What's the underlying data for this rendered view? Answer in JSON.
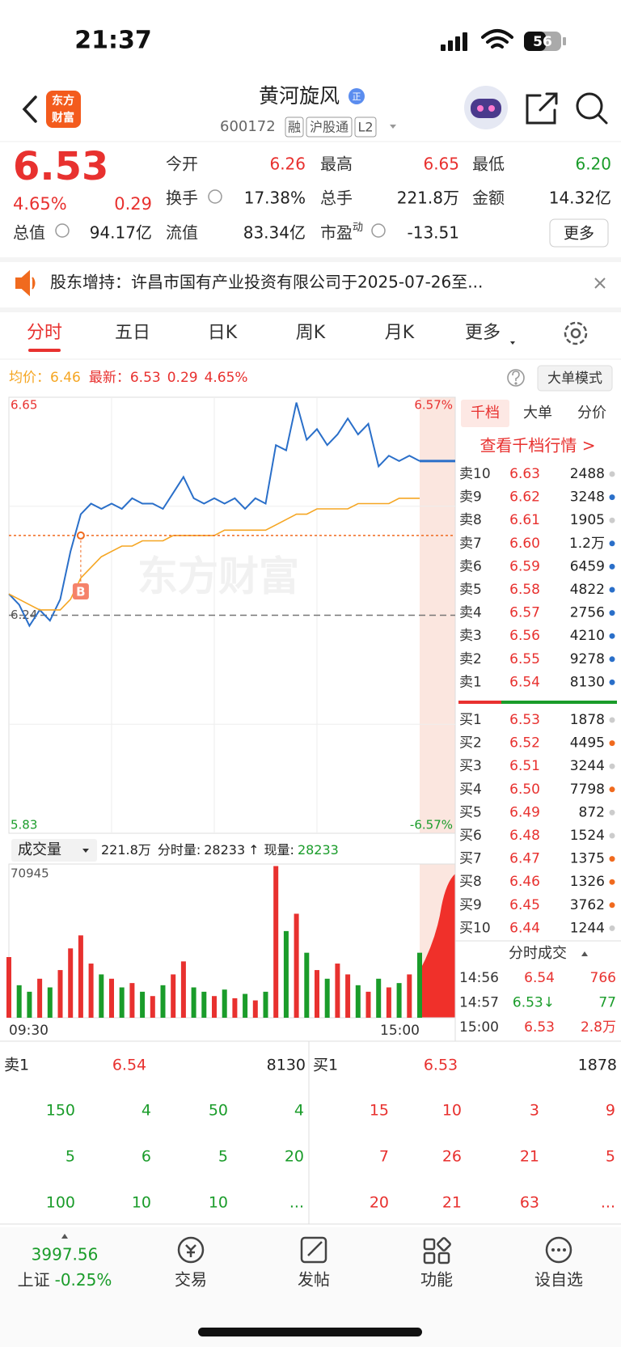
{
  "status_bar": {
    "time": "21:37",
    "battery": "56"
  },
  "header": {
    "logo": [
      "东方",
      "财富"
    ],
    "title": "黄河旋风",
    "badge": "正",
    "code": "600172",
    "tags": [
      "融",
      "沪股通",
      "L2"
    ]
  },
  "quote": {
    "price": "6.53",
    "change_pct": "4.65%",
    "change": "0.29",
    "fields": [
      {
        "label": "今开",
        "value": "6.26",
        "color": "#e8312f"
      },
      {
        "label": "最高",
        "value": "6.65",
        "color": "#e8312f"
      },
      {
        "label": "最低",
        "value": "6.20",
        "color": "#1a9c2a"
      },
      {
        "label": "换手",
        "value": "17.38%"
      },
      {
        "label": "总手",
        "value": "221.8万"
      },
      {
        "label": "金额",
        "value": "14.32亿"
      },
      {
        "label": "总值",
        "value": "94.17亿"
      },
      {
        "label": "流值",
        "value": "83.34亿"
      },
      {
        "label": "市盈",
        "sup": "动",
        "value": "-13.51"
      }
    ],
    "more": "更多"
  },
  "notice": "股东增持：许昌市国有产业投资有限公司于2025-07-26至...",
  "tabs": [
    "分时",
    "五日",
    "日K",
    "周K",
    "月K",
    "更多"
  ],
  "chart_data": {
    "type": "line",
    "avg_label": "均价：",
    "avg_value": "6.46",
    "latest_label": "最新：",
    "latest_value": "6.53",
    "latest_change": "0.29",
    "latest_pct": "4.65%",
    "mode_button": "大单模式",
    "watermark": "东方财富",
    "ylim": [
      5.83,
      6.65
    ],
    "pct_labels": [
      "6.57%",
      "-6.57%"
    ],
    "prev_close": 6.24,
    "x_labels": [
      "09:30",
      "15:00"
    ],
    "buy_marker": {
      "label": "B",
      "price": 6.39
    },
    "series": [
      {
        "color": "#2a6fc9",
        "values": [
          6.28,
          6.26,
          6.22,
          6.25,
          6.23,
          6.27,
          6.36,
          6.43,
          6.45,
          6.44,
          6.45,
          6.44,
          6.46,
          6.45,
          6.45,
          6.44,
          6.47,
          6.5,
          6.46,
          6.45,
          6.46,
          6.45,
          6.46,
          6.44,
          6.46,
          6.45,
          6.56,
          6.55,
          6.64,
          6.57,
          6.59,
          6.56,
          6.58,
          6.61,
          6.58,
          6.6,
          6.52,
          6.54,
          6.53,
          6.54,
          6.53
        ]
      },
      {
        "color": "#f5a623",
        "values": [
          6.28,
          6.27,
          6.26,
          6.25,
          6.25,
          6.25,
          6.27,
          6.31,
          6.33,
          6.35,
          6.36,
          6.37,
          6.37,
          6.38,
          6.38,
          6.38,
          6.39,
          6.39,
          6.39,
          6.39,
          6.39,
          6.4,
          6.4,
          6.4,
          6.4,
          6.4,
          6.41,
          6.42,
          6.43,
          6.43,
          6.44,
          6.44,
          6.44,
          6.44,
          6.45,
          6.45,
          6.45,
          6.45,
          6.46,
          6.46,
          6.46
        ]
      }
    ],
    "volume": {
      "selector": "成交量",
      "total": "221.8万",
      "minute_label": "分时量:",
      "minute_value": "28233",
      "arrow": "↑",
      "current_label": "现量:",
      "current_value": "28233",
      "ylim": [
        0,
        70945
      ],
      "values": [
        28000,
        15000,
        12000,
        18000,
        14000,
        22000,
        32000,
        38000,
        25000,
        20000,
        18000,
        14000,
        16000,
        12000,
        10000,
        15000,
        20000,
        26000,
        14000,
        12000,
        10000,
        13000,
        9000,
        11000,
        8000,
        12000,
        70000,
        40000,
        48000,
        30000,
        22000,
        18000,
        25000,
        20000,
        15000,
        12000,
        18000,
        14000,
        16000,
        20000,
        30000
      ]
    }
  },
  "order_book": {
    "tabs": [
      "千档",
      "大单",
      "分价"
    ],
    "link": "查看千档行情 >",
    "asks": [
      {
        "label": "卖10",
        "price": "6.63",
        "volume": "2488",
        "dot": "#cccccc"
      },
      {
        "label": "卖9",
        "price": "6.62",
        "volume": "3248",
        "dot": "#2a6fc9"
      },
      {
        "label": "卖8",
        "price": "6.61",
        "volume": "1905",
        "dot": "#cccccc"
      },
      {
        "label": "卖7",
        "price": "6.60",
        "volume": "1.2万",
        "dot": "#2a6fc9"
      },
      {
        "label": "卖6",
        "price": "6.59",
        "volume": "6459",
        "dot": "#2a6fc9"
      },
      {
        "label": "卖5",
        "price": "6.58",
        "volume": "4822",
        "dot": "#2a6fc9"
      },
      {
        "label": "卖4",
        "price": "6.57",
        "volume": "2756",
        "dot": "#2a6fc9"
      },
      {
        "label": "卖3",
        "price": "6.56",
        "volume": "4210",
        "dot": "#2a6fc9"
      },
      {
        "label": "卖2",
        "price": "6.55",
        "volume": "9278",
        "dot": "#2a6fc9"
      },
      {
        "label": "卖1",
        "price": "6.54",
        "volume": "8130",
        "dot": "#2a6fc9"
      }
    ],
    "bids": [
      {
        "label": "买1",
        "price": "6.53",
        "volume": "1878",
        "dot": "#cccccc"
      },
      {
        "label": "买2",
        "price": "6.52",
        "volume": "4495",
        "dot": "#f06a1e"
      },
      {
        "label": "买3",
        "price": "6.51",
        "volume": "3244",
        "dot": "#cccccc"
      },
      {
        "label": "买4",
        "price": "6.50",
        "volume": "7798",
        "dot": "#f06a1e"
      },
      {
        "label": "买5",
        "price": "6.49",
        "volume": "872",
        "dot": "#cccccc"
      },
      {
        "label": "买6",
        "price": "6.48",
        "volume": "1524",
        "dot": "#cccccc"
      },
      {
        "label": "买7",
        "price": "6.47",
        "volume": "1375",
        "dot": "#f06a1e"
      },
      {
        "label": "买8",
        "price": "6.46",
        "volume": "1326",
        "dot": "#f06a1e"
      },
      {
        "label": "买9",
        "price": "6.45",
        "volume": "3762",
        "dot": "#f06a1e"
      },
      {
        "label": "买10",
        "price": "6.44",
        "volume": "1244",
        "dot": "#cccccc"
      }
    ],
    "trades_title": "分时成交",
    "trades": [
      {
        "time": "14:56",
        "price": "6.54",
        "volume": "766",
        "price_color": "#e8312f",
        "volume_color": "#e8312f"
      },
      {
        "time": "14:57",
        "price": "6.53↓",
        "volume": "77",
        "price_color": "#1a9c2a",
        "volume_color": "#1a9c2a"
      },
      {
        "time": "15:00",
        "price": "6.53",
        "volume": "2.8万",
        "price_color": "#e8312f",
        "volume_color": "#e8312f"
      }
    ]
  },
  "queue": {
    "ask": {
      "label": "卖1",
      "price": "6.54",
      "volume": "8130",
      "orders": [
        [
          "150",
          "4",
          "50",
          "4"
        ],
        [
          "5",
          "6",
          "5",
          "20"
        ],
        [
          "100",
          "10",
          "10",
          "..."
        ]
      ]
    },
    "bid": {
      "label": "买1",
      "price": "6.53",
      "volume": "1878",
      "orders": [
        [
          "15",
          "10",
          "3",
          "9"
        ],
        [
          "7",
          "26",
          "21",
          "5"
        ],
        [
          "20",
          "21",
          "63",
          "..."
        ]
      ]
    }
  },
  "nav": {
    "index_value": "3997.56",
    "index_name": "上证",
    "index_change": "-0.25%",
    "items": [
      "交易",
      "发帖",
      "功能",
      "设自选"
    ]
  }
}
